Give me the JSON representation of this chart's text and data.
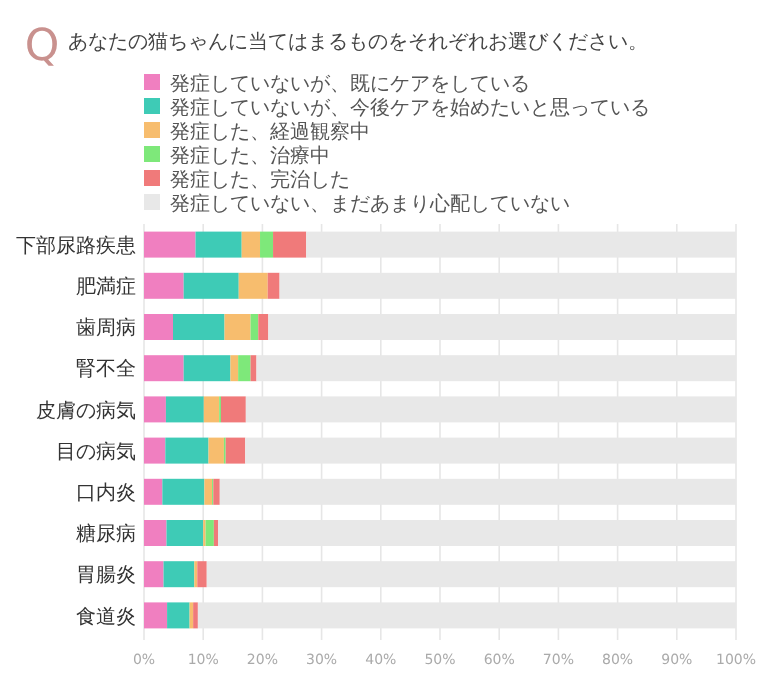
{
  "chart_data": {
    "type": "bar",
    "orientation": "horizontal",
    "stacked": true,
    "title": "あなたの猫ちゃんに当てはまるものをそれぞれお選びください。",
    "annotations": [
      "Q"
    ],
    "categories": [
      "下部尿路疾患",
      "肥満症",
      "歯周病",
      "腎不全",
      "皮膚の病気",
      "目の病気",
      "口内炎",
      "糖尿病",
      "胃腸炎",
      "食道炎"
    ],
    "series": [
      {
        "name": "発症していないが、既にケアをしている",
        "color": "#f07fc0",
        "values": [
          8.7,
          6.7,
          4.9,
          6.7,
          3.7,
          3.6,
          3.1,
          3.8,
          3.3,
          3.9
        ]
      },
      {
        "name": "発症していないが、今後ケアを始めたいと思っている",
        "color": "#3ecbb6",
        "values": [
          7.8,
          9.3,
          8.7,
          7.9,
          6.4,
          7.3,
          7.1,
          6.2,
          5.2,
          3.8
        ]
      },
      {
        "name": "発症した、経過観察中",
        "color": "#f7bd6e",
        "values": [
          3.1,
          4.9,
          4.4,
          1.3,
          2.6,
          2.6,
          1.3,
          0.4,
          0.5,
          0.6
        ]
      },
      {
        "name": "発症した、治療中",
        "color": "#7ee87a",
        "values": [
          2.2,
          0,
          1.3,
          2.1,
          0.3,
          0.3,
          0.2,
          1.4,
          0,
          0
        ]
      },
      {
        "name": "発症した、完治した",
        "color": "#f07a7a",
        "values": [
          5.6,
          2.0,
          1.7,
          1.0,
          4.2,
          3.3,
          1.1,
          0.7,
          1.6,
          0.8
        ]
      },
      {
        "name": "発症していない、まだあまり心配していない",
        "color": "#e8e8e8",
        "values": [
          72.6,
          77.1,
          79.0,
          81.0,
          82.8,
          82.9,
          87.2,
          87.5,
          89.4,
          90.9
        ]
      }
    ],
    "xlim": [
      0,
      100
    ],
    "xticks": [
      {
        "value": 0,
        "label": "0%"
      },
      {
        "value": 10,
        "label": "10%"
      },
      {
        "value": 20,
        "label": "20%"
      },
      {
        "value": 30,
        "label": "30%"
      },
      {
        "value": 40,
        "label": "40%"
      },
      {
        "value": 50,
        "label": "50%"
      },
      {
        "value": 60,
        "label": "60%"
      },
      {
        "value": 70,
        "label": "70%"
      },
      {
        "value": 80,
        "label": "80%"
      },
      {
        "value": 90,
        "label": "90%"
      },
      {
        "value": 100,
        "label": "100%"
      }
    ],
    "grid": "x",
    "legend": "top"
  }
}
